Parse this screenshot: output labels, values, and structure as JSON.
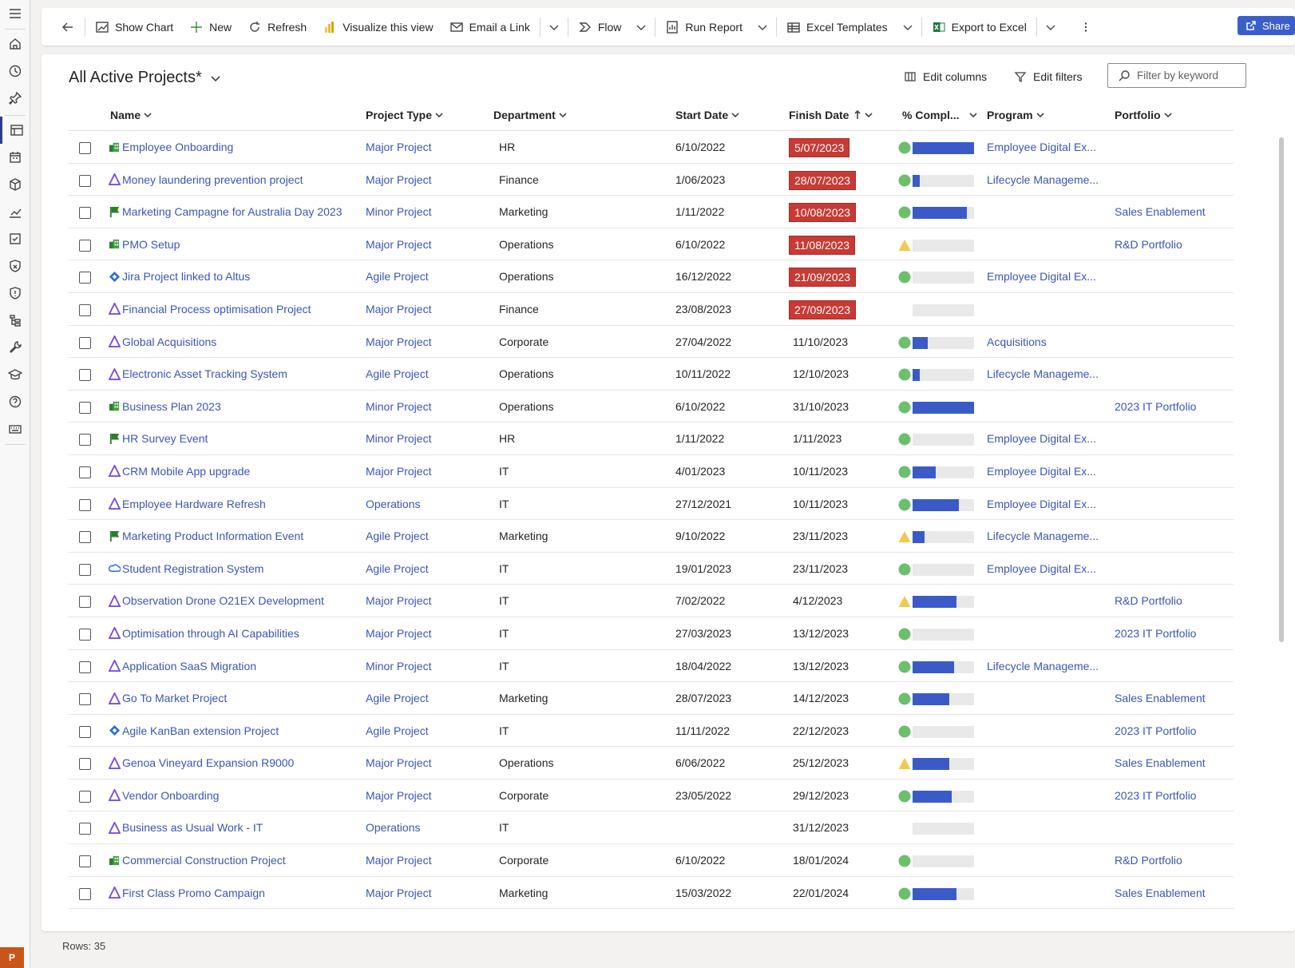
{
  "toolbar": {
    "show_chart": "Show Chart",
    "new": "New",
    "refresh": "Refresh",
    "visualize": "Visualize this view",
    "email_link": "Email a Link",
    "flow": "Flow",
    "run_report": "Run Report",
    "excel_templates": "Excel Templates",
    "export_excel": "Export to Excel",
    "share": "Share"
  },
  "view": {
    "title": "All Active Projects*",
    "edit_columns": "Edit columns",
    "edit_filters": "Edit filters",
    "filter_placeholder": "Filter by keyword"
  },
  "columns": {
    "name": "Name",
    "project_type": "Project Type",
    "department": "Department",
    "start_date": "Start Date",
    "finish_date": "Finish Date",
    "complete": "% Compl...",
    "program": "Program",
    "portfolio": "Portfolio"
  },
  "colors": {
    "accent": "#3b5fc9",
    "link": "#3a56b5",
    "overdue": "#c83a35",
    "status_green": "#6cbf6c",
    "status_amber": "#f2c94c",
    "progress": "#3a5bc7"
  },
  "rows": [
    {
      "icon": "building-icon",
      "name": "Employee Onboarding",
      "type": "Major Project",
      "dept": "HR",
      "start": "6/10/2022",
      "finish": "5/07/2023",
      "overdue": true,
      "status": "green",
      "pct": 100,
      "program": "Employee Digital Ex...",
      "portfolio": ""
    },
    {
      "icon": "triangle-icon",
      "name": "Money laundering prevention project",
      "type": "Major Project",
      "dept": "Finance",
      "start": "1/06/2023",
      "finish": "28/07/2023",
      "overdue": true,
      "status": "green",
      "pct": 12,
      "program": "Lifecycle Manageme...",
      "portfolio": ""
    },
    {
      "icon": "flag-icon",
      "name": "Marketing Campagne for Australia Day 2023",
      "type": "Minor Project",
      "dept": "Marketing",
      "start": "1/11/2022",
      "finish": "10/08/2023",
      "overdue": true,
      "status": "green",
      "pct": 88,
      "program": "",
      "portfolio": "Sales Enablement"
    },
    {
      "icon": "building-icon",
      "name": "PMO Setup",
      "type": "Major Project",
      "dept": "Operations",
      "start": "6/10/2022",
      "finish": "11/08/2023",
      "overdue": true,
      "status": "amber",
      "pct": 0,
      "program": "",
      "portfolio": "R&D Portfolio"
    },
    {
      "icon": "jira-icon",
      "name": "Jira Project linked to Altus",
      "type": "Agile Project",
      "dept": "Operations",
      "start": "16/12/2022",
      "finish": "21/09/2023",
      "overdue": true,
      "status": "green",
      "pct": 0,
      "program": "Employee Digital Ex...",
      "portfolio": ""
    },
    {
      "icon": "triangle-icon",
      "name": "Financial Process optimisation Project",
      "type": "Major Project",
      "dept": "Finance",
      "start": "23/08/2023",
      "finish": "27/09/2023",
      "overdue": true,
      "status": "none",
      "pct": 0,
      "program": "",
      "portfolio": ""
    },
    {
      "icon": "triangle-icon",
      "name": "Global Acquisitions",
      "type": "Major Project",
      "dept": "Corporate",
      "start": "27/04/2022",
      "finish": "11/10/2023",
      "overdue": false,
      "status": "green",
      "pct": 25,
      "program": "Acquisitions",
      "portfolio": ""
    },
    {
      "icon": "triangle-icon",
      "name": "Electronic Asset Tracking System",
      "type": "Agile Project",
      "dept": "Operations",
      "start": "10/11/2022",
      "finish": "12/10/2023",
      "overdue": false,
      "status": "green",
      "pct": 12,
      "program": "Lifecycle Manageme...",
      "portfolio": ""
    },
    {
      "icon": "building-icon",
      "name": "Business Plan 2023",
      "type": "Minor Project",
      "dept": "Operations",
      "start": "6/10/2022",
      "finish": "31/10/2023",
      "overdue": false,
      "status": "green",
      "pct": 100,
      "program": "",
      "portfolio": "2023 IT Portfolio"
    },
    {
      "icon": "flag-icon",
      "name": "HR Survey Event",
      "type": "Minor Project",
      "dept": "HR",
      "start": "1/11/2022",
      "finish": "1/11/2023",
      "overdue": false,
      "status": "green",
      "pct": 0,
      "program": "Employee Digital Ex...",
      "portfolio": ""
    },
    {
      "icon": "triangle-icon",
      "name": "CRM Mobile App upgrade",
      "type": "Major Project",
      "dept": "IT",
      "start": "4/01/2023",
      "finish": "10/11/2023",
      "overdue": false,
      "status": "green",
      "pct": 38,
      "program": "Employee Digital Ex...",
      "portfolio": ""
    },
    {
      "icon": "triangle-icon",
      "name": "Employee Hardware Refresh",
      "type": "Operations",
      "dept": "IT",
      "start": "27/12/2021",
      "finish": "10/11/2023",
      "overdue": false,
      "status": "green",
      "pct": 75,
      "program": "Employee Digital Ex...",
      "portfolio": ""
    },
    {
      "icon": "flag-icon",
      "name": "Marketing Product Information Event",
      "type": "Agile Project",
      "dept": "Marketing",
      "start": "9/10/2022",
      "finish": "23/11/2023",
      "overdue": false,
      "status": "amber",
      "pct": 20,
      "program": "Lifecycle Manageme...",
      "portfolio": ""
    },
    {
      "icon": "cloud-icon",
      "name": "Student Registration System",
      "type": "Agile Project",
      "dept": "IT",
      "start": "19/01/2023",
      "finish": "23/11/2023",
      "overdue": false,
      "status": "green",
      "pct": 0,
      "program": "Employee Digital Ex...",
      "portfolio": ""
    },
    {
      "icon": "triangle-icon",
      "name": "Observation Drone O21EX Development",
      "type": "Major Project",
      "dept": "IT",
      "start": "7/02/2022",
      "finish": "4/12/2023",
      "overdue": false,
      "status": "amber",
      "pct": 72,
      "program": "",
      "portfolio": "R&D Portfolio"
    },
    {
      "icon": "triangle-icon",
      "name": "Optimisation through AI Capabilities",
      "type": "Major Project",
      "dept": "IT",
      "start": "27/03/2023",
      "finish": "13/12/2023",
      "overdue": false,
      "status": "green",
      "pct": 0,
      "program": "",
      "portfolio": "2023 IT Portfolio"
    },
    {
      "icon": "triangle-icon",
      "name": "Application SaaS Migration",
      "type": "Minor Project",
      "dept": "IT",
      "start": "18/04/2022",
      "finish": "13/12/2023",
      "overdue": false,
      "status": "green",
      "pct": 67,
      "program": "Lifecycle Manageme...",
      "portfolio": ""
    },
    {
      "icon": "triangle-icon",
      "name": "Go To Market Project",
      "type": "Agile Project",
      "dept": "Marketing",
      "start": "28/07/2023",
      "finish": "14/12/2023",
      "overdue": false,
      "status": "green",
      "pct": 60,
      "program": "",
      "portfolio": "Sales Enablement"
    },
    {
      "icon": "jira-icon",
      "name": "Agile KanBan extension Project",
      "type": "Agile Project",
      "dept": "IT",
      "start": "11/11/2022",
      "finish": "22/12/2023",
      "overdue": false,
      "status": "green",
      "pct": 0,
      "program": "",
      "portfolio": "2023 IT Portfolio"
    },
    {
      "icon": "triangle-icon",
      "name": "Genoa Vineyard Expansion R9000",
      "type": "Major Project",
      "dept": "Operations",
      "start": "6/06/2022",
      "finish": "25/12/2023",
      "overdue": false,
      "status": "amber",
      "pct": 60,
      "program": "",
      "portfolio": "Sales Enablement"
    },
    {
      "icon": "triangle-icon",
      "name": "Vendor Onboarding",
      "type": "Major Project",
      "dept": "Corporate",
      "start": "23/05/2022",
      "finish": "29/12/2023",
      "overdue": false,
      "status": "green",
      "pct": 64,
      "program": "",
      "portfolio": "2023 IT Portfolio"
    },
    {
      "icon": "triangle-icon",
      "name": "Business as Usual Work - IT",
      "type": "Operations",
      "dept": "IT",
      "start": "",
      "finish": "31/12/2023",
      "overdue": false,
      "status": "none",
      "pct": 0,
      "program": "",
      "portfolio": ""
    },
    {
      "icon": "building-icon",
      "name": "Commercial Construction Project",
      "type": "Major Project",
      "dept": "Corporate",
      "start": "6/10/2022",
      "finish": "18/01/2024",
      "overdue": false,
      "status": "green",
      "pct": 0,
      "program": "",
      "portfolio": "R&D Portfolio"
    },
    {
      "icon": "triangle-icon",
      "name": "First Class Promo Campaign",
      "type": "Major Project",
      "dept": "Marketing",
      "start": "15/03/2022",
      "finish": "22/01/2024",
      "overdue": false,
      "status": "green",
      "pct": 72,
      "program": "",
      "portfolio": "Sales Enablement"
    }
  ],
  "footer": {
    "rows_label": "Rows: 35"
  },
  "user": {
    "avatar": "P"
  }
}
